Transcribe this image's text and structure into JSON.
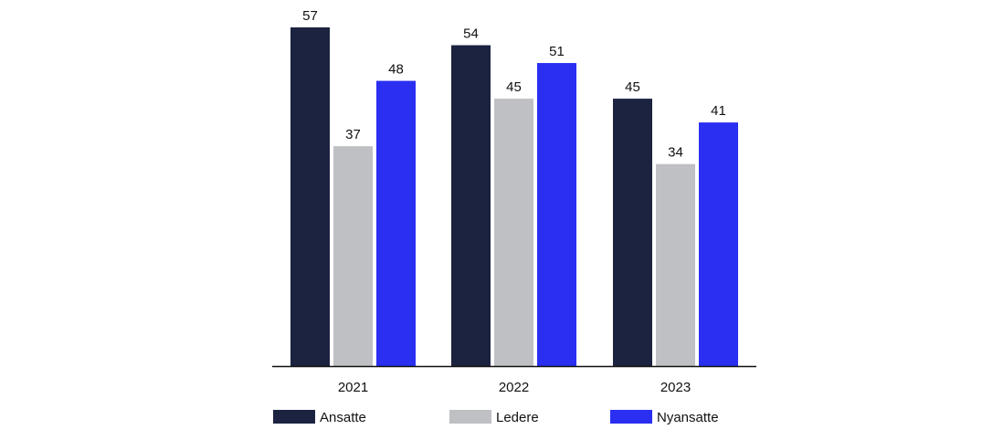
{
  "chart_data": {
    "type": "bar",
    "categories": [
      "2021",
      "2022",
      "2023"
    ],
    "series": [
      {
        "name": "Ansatte",
        "values": [
          57,
          54,
          45
        ],
        "color": "#1c2340"
      },
      {
        "name": "Ledere",
        "values": [
          37,
          45,
          34
        ],
        "color": "#bfc0c3"
      },
      {
        "name": "Nyansatte",
        "values": [
          48,
          51,
          41
        ],
        "color": "#2a2ff2"
      }
    ],
    "ylim": [
      0,
      60
    ],
    "grid": false,
    "legend_position": "bottom"
  }
}
